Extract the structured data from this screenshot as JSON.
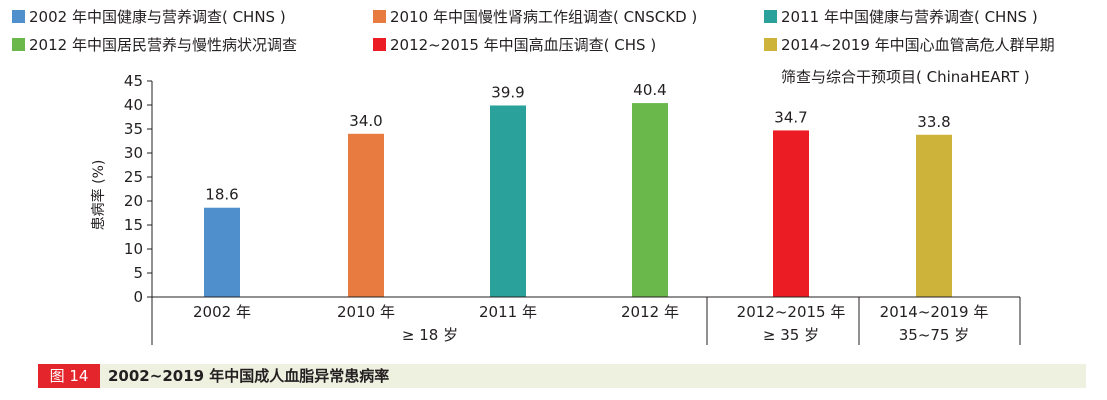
{
  "figure": {
    "number_label": "图 14",
    "caption": "2002~2019 年中国成人血脂异常患病率"
  },
  "chart_data": {
    "type": "bar",
    "ylabel": "患病率 (%)",
    "ylim": [
      0,
      45
    ],
    "yticks": [
      0,
      5,
      10,
      15,
      20,
      25,
      30,
      35,
      40,
      45
    ],
    "grid": false,
    "legend_position": "top",
    "categories": [
      "2002 年",
      "2010 年",
      "2011 年",
      "2012 年",
      "2012~2015 年",
      "2014~2019 年"
    ],
    "values": [
      18.6,
      34.0,
      39.9,
      40.4,
      34.7,
      33.8
    ],
    "value_labels": [
      "18.6",
      "34.0",
      "39.9",
      "40.4",
      "34.7",
      "33.8"
    ],
    "colors": [
      "#4f8fcb",
      "#e87b40",
      "#2aa19a",
      "#6ab84b",
      "#ec1c24",
      "#cdb33a"
    ],
    "legend": [
      {
        "label": "2002 年中国健康与营养调查( CHNS )",
        "color": "#4f8fcb"
      },
      {
        "label": "2010 年中国慢性肾病工作组调查( CNSCKD )",
        "color": "#e87b40"
      },
      {
        "label": "2011 年中国健康与营养调查( CHNS  )",
        "color": "#2aa19a"
      },
      {
        "label": "2012 年中国居民营养与慢性病状况调查",
        "color": "#6ab84b"
      },
      {
        "label": "2012~2015 年中国高血压调查( CHS )",
        "color": "#ec1c24"
      },
      {
        "label": "2014~2019 年中国心血管高危人群早期",
        "label_line2": "筛查与综合干预项目( ChinaHEART )",
        "color": "#cdb33a"
      }
    ],
    "age_groups": [
      {
        "label": "≥ 18 岁"
      },
      {
        "label": "≥ 35 岁"
      },
      {
        "label": "35~75 岁"
      }
    ]
  }
}
